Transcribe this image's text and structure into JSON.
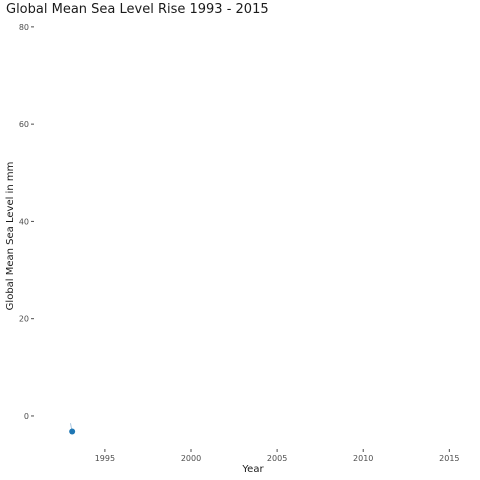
{
  "chart_data": {
    "type": "line",
    "title": "Global Mean Sea Level Rise 1993 - 2015",
    "xlabel": "Year",
    "ylabel": "Global Mean Sea Level in mm",
    "xlim": [
      1991.0,
      2016.2
    ],
    "ylim": [
      -7,
      81
    ],
    "x_ticks": [
      1995,
      2000,
      2005,
      2010,
      2015
    ],
    "y_ticks": [
      0,
      20,
      40,
      60,
      80
    ],
    "grid": false,
    "points": [
      {
        "x": 1993.0,
        "y": -1.5
      },
      {
        "x": 1993.1,
        "y": -3.2
      }
    ],
    "marker": {
      "x": 1993.1,
      "y": -3.2
    },
    "colors": {
      "line": "#a9c6e0",
      "point": "#1f77b4"
    }
  }
}
